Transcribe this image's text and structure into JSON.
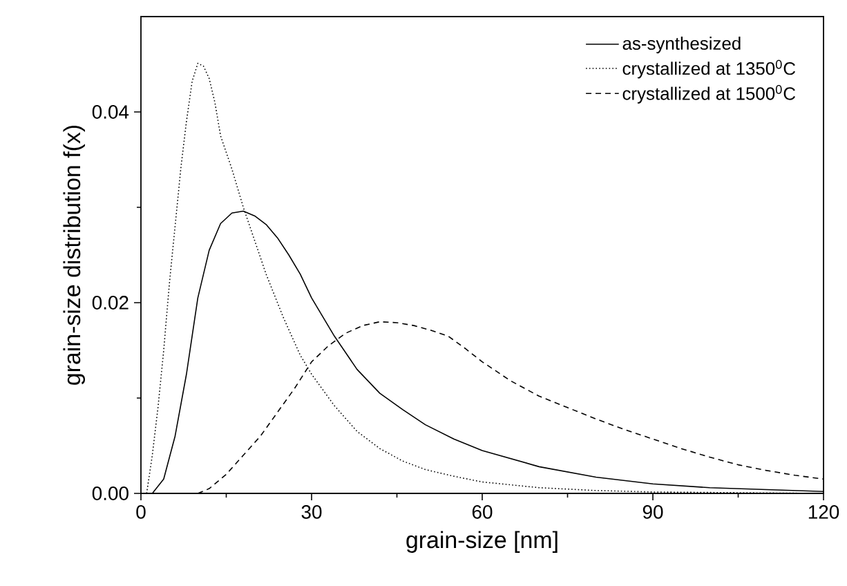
{
  "chart_data": {
    "type": "line",
    "xlabel": "grain-size [nm]",
    "ylabel": "grain-size distribution f(x)",
    "xlim": [
      0,
      120
    ],
    "ylim": [
      0,
      0.05
    ],
    "xticks": [
      0,
      30,
      60,
      90,
      120
    ],
    "yticks": [
      {
        "value": 0,
        "label": "0.00"
      },
      {
        "value": 0.02,
        "label": "0.02"
      },
      {
        "value": 0.04,
        "label": "0.04"
      }
    ],
    "legend": "top right",
    "marker": "none",
    "grid": false,
    "series": [
      {
        "name": "as-synthesized",
        "color": "#000000",
        "line_style": "solid",
        "x": [
          2,
          4,
          6,
          8,
          10,
          12,
          14,
          16,
          18,
          20,
          22,
          24,
          26,
          28,
          30,
          34,
          38,
          42,
          46,
          50,
          55,
          60,
          70,
          80,
          90,
          100,
          110,
          120
        ],
        "values": [
          0,
          0.0015,
          0.006,
          0.0125,
          0.0205,
          0.0255,
          0.0283,
          0.0294,
          0.0296,
          0.0291,
          0.0282,
          0.0268,
          0.025,
          0.023,
          0.0205,
          0.0165,
          0.013,
          0.0105,
          0.0088,
          0.0072,
          0.0057,
          0.0045,
          0.0028,
          0.0017,
          0.001,
          0.0006,
          0.0004,
          0.0002
        ]
      },
      {
        "name": "crystallized at 1350$^{0}$C",
        "color": "#000000",
        "line_style": "dotted",
        "x": [
          1,
          2,
          3,
          4,
          5,
          6,
          7,
          8,
          9,
          10,
          11,
          12,
          13,
          14,
          16,
          18,
          20,
          22,
          25,
          28,
          30,
          34,
          38,
          42,
          46,
          50,
          55,
          60,
          70,
          80,
          90,
          100,
          120
        ],
        "values": [
          0,
          0.004,
          0.009,
          0.015,
          0.022,
          0.028,
          0.034,
          0.039,
          0.0432,
          0.0451,
          0.0448,
          0.0435,
          0.041,
          0.0375,
          0.034,
          0.03,
          0.0265,
          0.023,
          0.0185,
          0.0145,
          0.0125,
          0.0092,
          0.0065,
          0.0047,
          0.0034,
          0.0025,
          0.0018,
          0.0012,
          0.0006,
          0.0003,
          0.00015,
          0.0001,
          0
        ]
      },
      {
        "name": "crystallized at 1500$^{0}$C",
        "color": "#000000",
        "line_style": "dashed",
        "x": [
          10,
          12,
          15,
          18,
          21,
          24,
          27,
          30,
          33,
          36,
          39,
          42,
          45,
          48,
          51,
          54,
          57,
          60,
          65,
          70,
          75,
          80,
          85,
          90,
          95,
          100,
          105,
          110,
          115,
          120
        ],
        "values": [
          0,
          0.0005,
          0.002,
          0.004,
          0.006,
          0.0085,
          0.011,
          0.0138,
          0.0155,
          0.0168,
          0.0176,
          0.018,
          0.0179,
          0.0176,
          0.0171,
          0.0165,
          0.0152,
          0.0138,
          0.0118,
          0.0102,
          0.009,
          0.0078,
          0.0067,
          0.0057,
          0.0047,
          0.0038,
          0.003,
          0.0024,
          0.0019,
          0.0015
        ]
      }
    ]
  }
}
